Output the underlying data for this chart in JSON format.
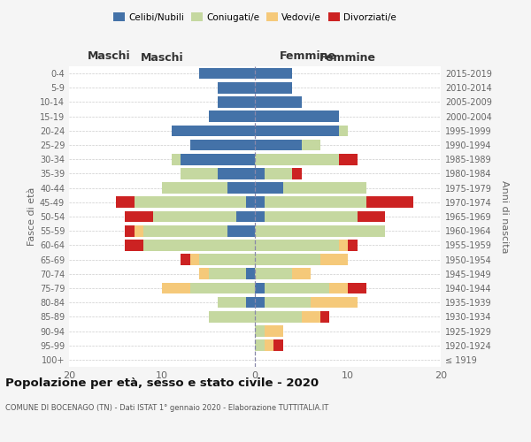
{
  "age_groups": [
    "100+",
    "95-99",
    "90-94",
    "85-89",
    "80-84",
    "75-79",
    "70-74",
    "65-69",
    "60-64",
    "55-59",
    "50-54",
    "45-49",
    "40-44",
    "35-39",
    "30-34",
    "25-29",
    "20-24",
    "15-19",
    "10-14",
    "5-9",
    "0-4"
  ],
  "birth_years": [
    "≤ 1919",
    "1920-1924",
    "1925-1929",
    "1930-1934",
    "1935-1939",
    "1940-1944",
    "1945-1949",
    "1950-1954",
    "1955-1959",
    "1960-1964",
    "1965-1969",
    "1970-1974",
    "1975-1979",
    "1980-1984",
    "1985-1989",
    "1990-1994",
    "1995-1999",
    "2000-2004",
    "2005-2009",
    "2010-2014",
    "2015-2019"
  ],
  "colors": {
    "celibe": "#4472a8",
    "coniugato": "#c5d8a0",
    "vedovo": "#f5c97a",
    "divorziato": "#cc2222"
  },
  "maschi": {
    "celibe": [
      0,
      0,
      0,
      0,
      1,
      0,
      1,
      0,
      0,
      3,
      2,
      1,
      3,
      4,
      8,
      7,
      9,
      5,
      4,
      4,
      6
    ],
    "coniugato": [
      0,
      0,
      0,
      5,
      3,
      7,
      4,
      6,
      12,
      9,
      9,
      12,
      7,
      4,
      1,
      0,
      0,
      0,
      0,
      0,
      0
    ],
    "vedovo": [
      0,
      0,
      0,
      0,
      0,
      3,
      1,
      1,
      0,
      1,
      0,
      0,
      0,
      0,
      0,
      0,
      0,
      0,
      0,
      0,
      0
    ],
    "divorziato": [
      0,
      0,
      0,
      0,
      0,
      0,
      0,
      1,
      2,
      1,
      3,
      2,
      0,
      0,
      0,
      0,
      0,
      0,
      0,
      0,
      0
    ]
  },
  "femmine": {
    "nubile": [
      0,
      0,
      0,
      0,
      1,
      1,
      0,
      0,
      0,
      0,
      1,
      1,
      3,
      1,
      0,
      5,
      9,
      9,
      5,
      4,
      4
    ],
    "coniugata": [
      0,
      1,
      1,
      5,
      5,
      7,
      4,
      7,
      9,
      14,
      10,
      11,
      9,
      3,
      9,
      2,
      1,
      0,
      0,
      0,
      0
    ],
    "vedova": [
      0,
      1,
      2,
      2,
      5,
      2,
      2,
      3,
      1,
      0,
      0,
      0,
      0,
      0,
      0,
      0,
      0,
      0,
      0,
      0,
      0
    ],
    "divorziata": [
      0,
      1,
      0,
      1,
      0,
      2,
      0,
      0,
      1,
      0,
      3,
      5,
      0,
      1,
      2,
      0,
      0,
      0,
      0,
      0,
      0
    ]
  },
  "xlim": [
    -20,
    20
  ],
  "title": "Popolazione per età, sesso e stato civile - 2020",
  "subtitle": "COMUNE DI BOCENAGO (TN) - Dati ISTAT 1° gennaio 2020 - Elaborazione TUTTITALIA.IT",
  "xlabel_left": "Maschi",
  "xlabel_right": "Femmine",
  "ylabel_left": "Fasce di età",
  "ylabel_right": "Anni di nascita",
  "bg_color": "#f5f5f5",
  "plot_bg": "#ffffff",
  "grid_color": "#cccccc"
}
